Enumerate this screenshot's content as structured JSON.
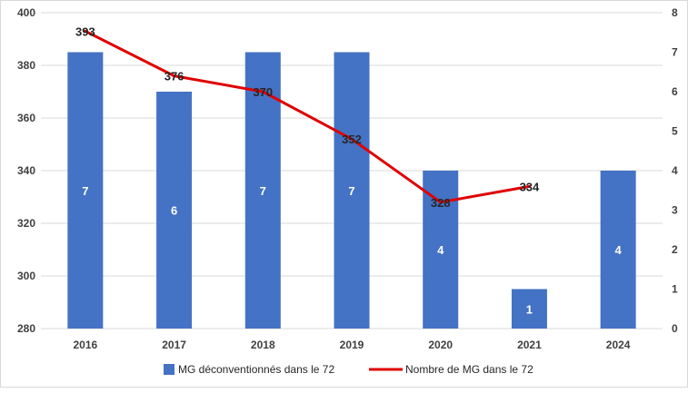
{
  "chart_data": {
    "type": "bar",
    "categories": [
      "2016",
      "2017",
      "2018",
      "2019",
      "2020",
      "2021",
      "2024"
    ],
    "series": [
      {
        "name": "MG déconventionnés dans le 72",
        "type": "bar",
        "axis": "right",
        "values": [
          7,
          6,
          7,
          7,
          4,
          1,
          4
        ],
        "labels": [
          "7",
          "6",
          "7",
          "7",
          "4",
          "1",
          "4"
        ],
        "color": "#4472C4"
      },
      {
        "name": "Nombre de MG dans le 72",
        "type": "line",
        "axis": "left",
        "values": [
          393,
          376,
          370,
          352,
          328,
          334,
          null
        ],
        "labels": [
          "393",
          "376",
          "370",
          "352",
          "328",
          "334",
          ""
        ],
        "color": "#E00000"
      }
    ],
    "y_left": {
      "min": 280,
      "max": 400,
      "ticks": [
        "280",
        "300",
        "320",
        "340",
        "360",
        "380",
        "400"
      ]
    },
    "y_right": {
      "min": 0,
      "max": 8,
      "ticks": [
        "0",
        "1",
        "2",
        "3",
        "4",
        "5",
        "6",
        "7",
        "8"
      ]
    },
    "grid": true,
    "legend": "bottom"
  }
}
